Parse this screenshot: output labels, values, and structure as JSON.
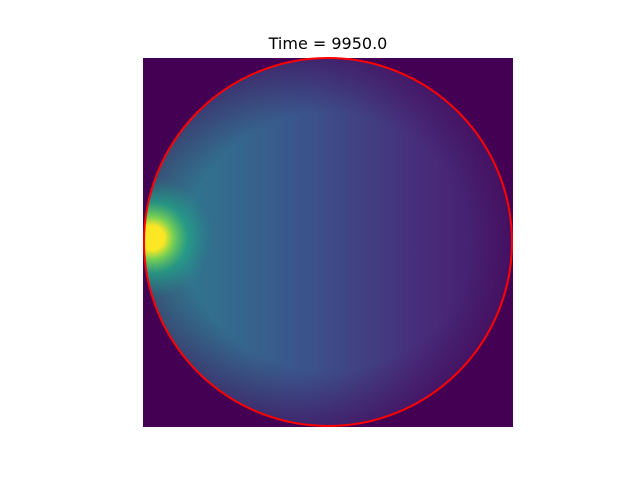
{
  "chart_data": {
    "type": "image",
    "title": "Time = 9950.0",
    "background_color": "#440154",
    "circle_color": "#ff0000"
  }
}
